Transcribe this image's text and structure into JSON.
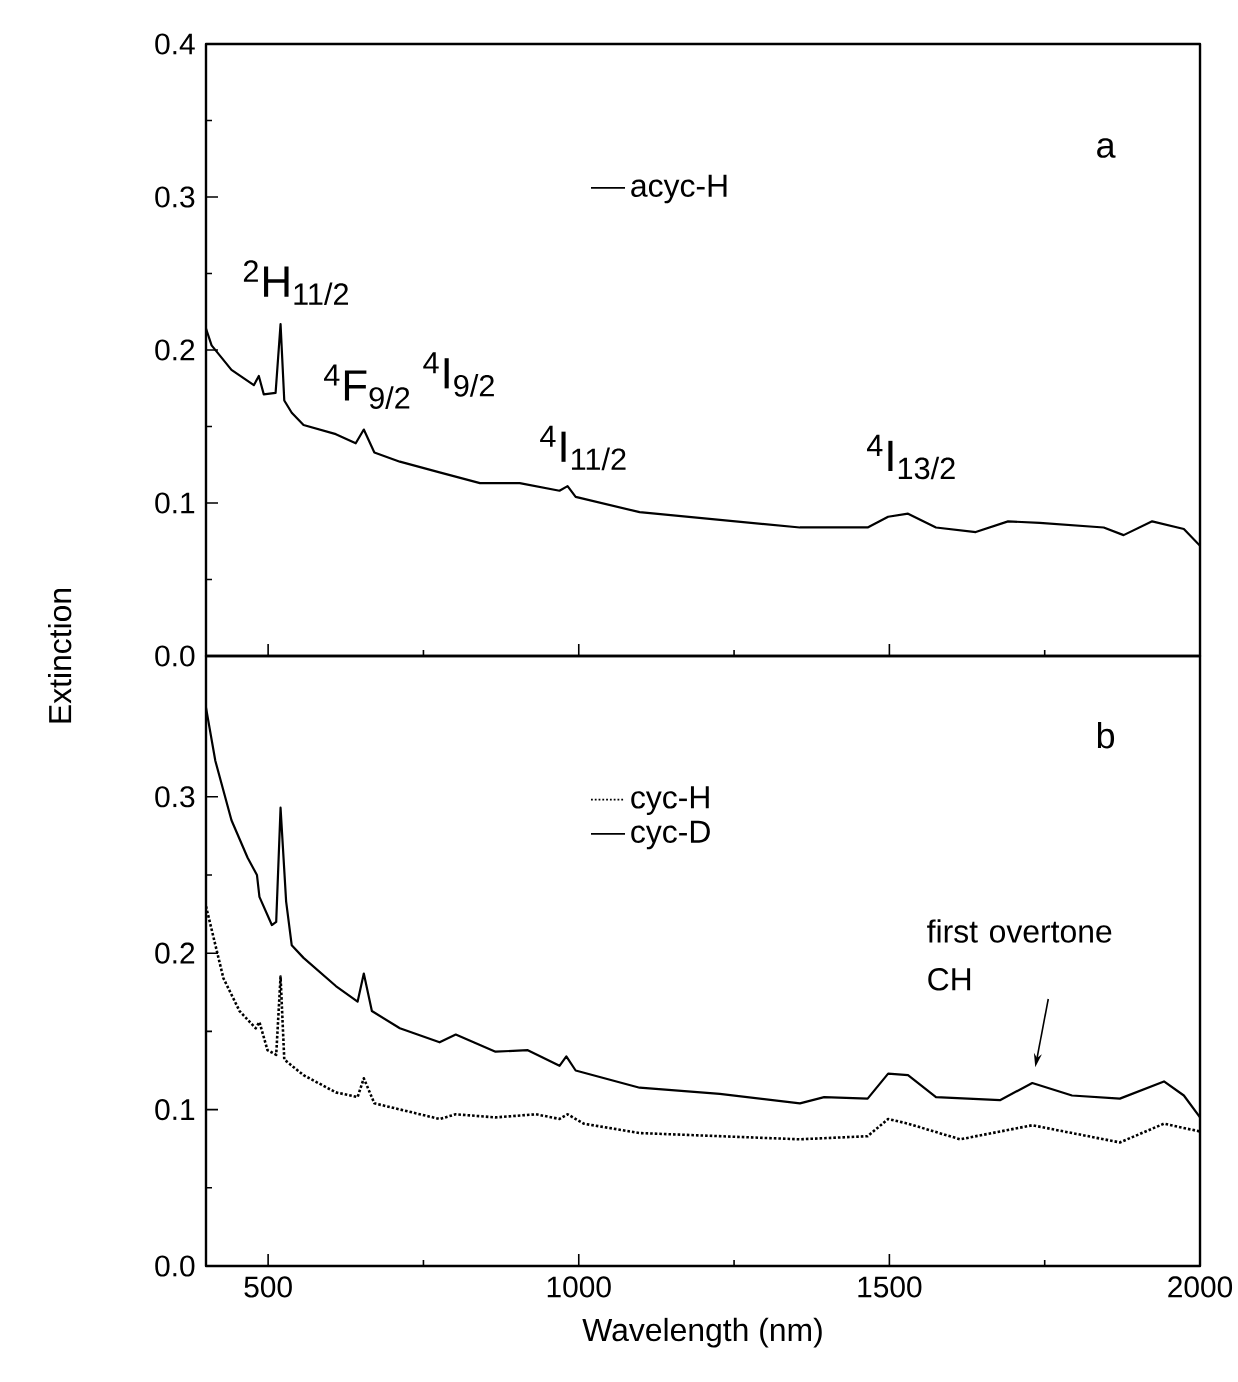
{
  "chart_data": [
    {
      "type": "line",
      "xlim": [
        400,
        2000
      ],
      "xticks": [
        500,
        1000,
        1500,
        2000
      ],
      "ylim": [
        0,
        0.4
      ],
      "yticks": [
        {
          "value": 0,
          "label": "0.0"
        },
        0.1,
        0.2,
        0.3,
        0.4
      ],
      "tick_labels": "y",
      "legend": "top",
      "grid": false,
      "marker": "none",
      "series": [
        {
          "name": "acyc-H",
          "color": "#000000",
          "line_style": "solid",
          "x": [
            400,
            409,
            441,
            477,
            485,
            493,
            512,
            520,
            526,
            538,
            557,
            609,
            641,
            654,
            671,
            712,
            776,
            841,
            905,
            969,
            982,
            995,
            1098,
            1227,
            1356,
            1465,
            1498,
            1530,
            1575,
            1639,
            1691,
            1742,
            1845,
            1877,
            1923,
            1974,
            2000
          ],
          "values": [
            0.214,
            0.203,
            0.187,
            0.177,
            0.183,
            0.171,
            0.172,
            0.217,
            0.167,
            0.159,
            0.151,
            0.145,
            0.139,
            0.148,
            0.133,
            0.127,
            0.12,
            0.113,
            0.113,
            0.108,
            0.111,
            0.104,
            0.094,
            0.089,
            0.084,
            0.084,
            0.091,
            0.093,
            0.084,
            0.081,
            0.088,
            0.087,
            0.084,
            0.079,
            0.088,
            0.083,
            0.072
          ]
        }
      ],
      "annotations": [
        "a",
        "$^{2}$H$_{11/2}$",
        "$^{4}$F$_{9/2}$",
        "$^{4}$I$_{9/2}$",
        "$^{4}$I$_{11/2}$",
        "$^{4}$I$_{13/2}$"
      ]
    },
    {
      "type": "line",
      "xlabel": "Wavelength (nm)",
      "ylabel": "Extinction",
      "xlim": [
        400,
        2000
      ],
      "xticks": [
        500,
        1000,
        1500,
        2000
      ],
      "ylim": [
        0,
        0.39
      ],
      "yticks": [
        {
          "value": 0,
          "label": "0.0"
        },
        0.1,
        0.2,
        0.3
      ],
      "legend": "top",
      "grid": false,
      "marker": "none",
      "series": [
        {
          "name": "cyc-H",
          "color": "#000000",
          "line_style": "dotted",
          "x": [
            400,
            428,
            454,
            480,
            486,
            499,
            513,
            520,
            526,
            557,
            609,
            644,
            654,
            671,
            776,
            802,
            866,
            931,
            969,
            982,
            1008,
            1098,
            1356,
            1465,
            1498,
            1530,
            1614,
            1730,
            1871,
            1942,
            2000
          ],
          "values": [
            0.23,
            0.184,
            0.163,
            0.152,
            0.156,
            0.138,
            0.135,
            0.185,
            0.132,
            0.122,
            0.111,
            0.108,
            0.12,
            0.104,
            0.094,
            0.097,
            0.095,
            0.097,
            0.094,
            0.097,
            0.091,
            0.085,
            0.081,
            0.083,
            0.094,
            0.091,
            0.081,
            0.09,
            0.079,
            0.091,
            0.086
          ]
        },
        {
          "name": "cyc-D",
          "color": "#000000",
          "line_style": "solid",
          "x": [
            400,
            415,
            441,
            467,
            482,
            486,
            506,
            513,
            520,
            529,
            538,
            557,
            609,
            644,
            654,
            667,
            712,
            776,
            802,
            866,
            918,
            969,
            980,
            995,
            1098,
            1227,
            1356,
            1395,
            1465,
            1498,
            1530,
            1575,
            1678,
            1730,
            1794,
            1871,
            1942,
            1974,
            2000
          ],
          "values": [
            0.357,
            0.323,
            0.285,
            0.261,
            0.25,
            0.236,
            0.218,
            0.22,
            0.293,
            0.233,
            0.205,
            0.197,
            0.179,
            0.169,
            0.187,
            0.163,
            0.152,
            0.143,
            0.148,
            0.137,
            0.138,
            0.128,
            0.134,
            0.125,
            0.114,
            0.11,
            0.104,
            0.108,
            0.107,
            0.123,
            0.122,
            0.108,
            0.106,
            0.117,
            0.109,
            0.107,
            0.118,
            0.109,
            0.095
          ]
        }
      ],
      "annotations": [
        "b",
        {
          "text": "first overtone CH",
          "x": 1730,
          "y": 0.117
        }
      ]
    }
  ]
}
